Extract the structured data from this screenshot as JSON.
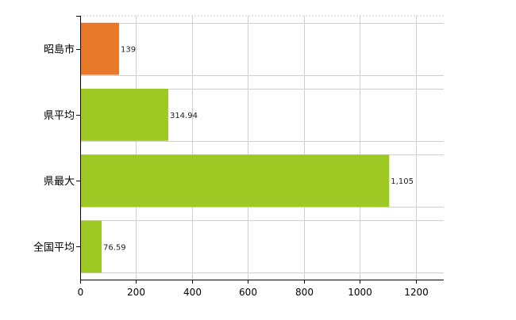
{
  "chart_data": {
    "type": "bar",
    "orientation": "horizontal",
    "categories": [
      "昭島市",
      "県平均",
      "県最大",
      "全国平均"
    ],
    "values": [
      139,
      314.94,
      1105,
      76.59
    ],
    "value_labels": [
      "139",
      "314.94",
      "1,105",
      "76.59"
    ],
    "xlim": [
      0,
      1300
    ],
    "xticks": [
      0,
      200,
      400,
      600,
      800,
      1000,
      1200
    ],
    "grid": true,
    "colors": [
      "#e8792a",
      "#9ec823",
      "#9ec823",
      "#9ec823"
    ]
  }
}
